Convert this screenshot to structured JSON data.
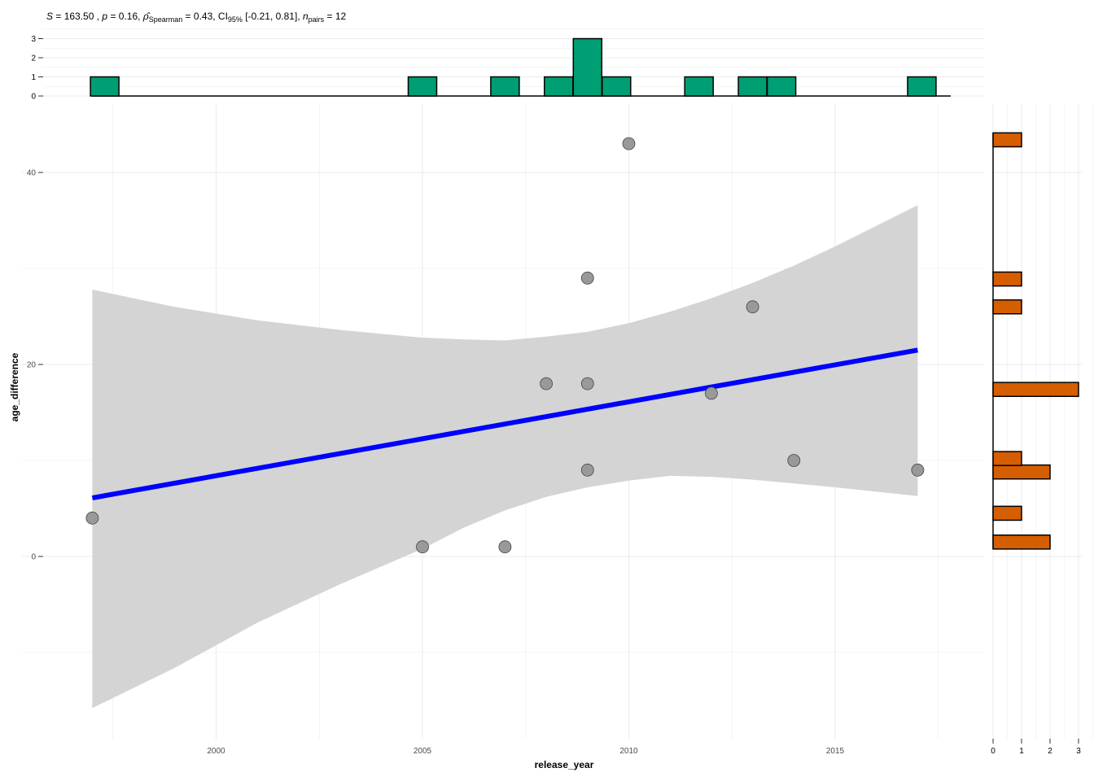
{
  "subtitle": {
    "s_label": "S",
    "s_value": " = 163.50",
    "p_label": "p",
    "p_value": " = 0.16, ",
    "rho_symbol": "ρ̂",
    "rho_sub": "Spearman",
    "rho_value": " = 0.43, CI",
    "ci_sub": "95%",
    "ci_value": " [-0.21, 0.81], ",
    "n_label": "n",
    "n_sub": "pairs",
    "n_value": " = 12"
  },
  "colors": {
    "points": "#999999",
    "trend_line": "#0000ff",
    "confidence_band": "#d4d4d4",
    "x_histogram": "#009E73",
    "y_histogram": "#D55E00",
    "grid": "#ebebeb"
  },
  "chart_data": [
    {
      "type": "scatter",
      "xlabel": "release_year",
      "ylabel": "age_difference",
      "xlim": [
        1996.3,
        2018.5
      ],
      "ylim": [
        -19,
        46.5
      ],
      "x_ticks": [
        "2000",
        "2005",
        "2010",
        "2015"
      ],
      "y_ticks": [
        "0",
        "20",
        "40"
      ],
      "grid": true,
      "points": [
        {
          "x": 1997,
          "y": 4
        },
        {
          "x": 2005,
          "y": 1
        },
        {
          "x": 2007,
          "y": 1
        },
        {
          "x": 2008,
          "y": 18
        },
        {
          "x": 2009,
          "y": 29
        },
        {
          "x": 2009,
          "y": 18
        },
        {
          "x": 2009,
          "y": 9
        },
        {
          "x": 2010,
          "y": 43
        },
        {
          "x": 2012,
          "y": 17
        },
        {
          "x": 2013,
          "y": 26
        },
        {
          "x": 2014,
          "y": 10
        },
        {
          "x": 2017,
          "y": 9
        }
      ],
      "trend_line": {
        "x": [
          1997,
          2017
        ],
        "y": [
          6.1,
          21.5
        ]
      },
      "confidence_band": {
        "x": [
          1997,
          1999,
          2001,
          2003,
          2005,
          2006,
          2007,
          2008,
          2009,
          2010,
          2011,
          2012,
          2013,
          2014,
          2015,
          2017
        ],
        "upper": [
          27.8,
          26.0,
          24.6,
          23.6,
          22.8,
          22.6,
          22.5,
          22.9,
          23.4,
          24.3,
          25.5,
          26.9,
          28.5,
          30.3,
          32.3,
          36.6
        ],
        "lower": [
          -15.8,
          -11.6,
          -6.9,
          -2.9,
          0.8,
          3.0,
          4.8,
          6.2,
          7.2,
          7.9,
          8.4,
          8.3,
          8.0,
          7.6,
          7.2,
          6.3
        ]
      }
    },
    {
      "type": "bar",
      "orientation": "vertical",
      "bins": [
        {
          "x": 1997.3,
          "count": 1
        },
        {
          "x": 2005.0,
          "count": 1
        },
        {
          "x": 2007.0,
          "count": 1
        },
        {
          "x": 2008.3,
          "count": 1
        },
        {
          "x": 2009.0,
          "count": 3
        },
        {
          "x": 2009.7,
          "count": 1
        },
        {
          "x": 2011.7,
          "count": 1
        },
        {
          "x": 2013.0,
          "count": 1
        },
        {
          "x": 2013.7,
          "count": 1
        },
        {
          "x": 2017.1,
          "count": 1
        }
      ],
      "bin_width": 0.69,
      "x_range": [
        1997.0,
        2017.8
      ],
      "ylim": [
        0,
        3
      ],
      "y_ticks": [
        "0",
        "1",
        "2",
        "3"
      ]
    },
    {
      "type": "bar",
      "orientation": "horizontal",
      "bins": [
        {
          "y": 1.5,
          "count": 2
        },
        {
          "y": 4.5,
          "count": 1
        },
        {
          "y": 8.8,
          "count": 2
        },
        {
          "y": 10.2,
          "count": 1
        },
        {
          "y": 17.4,
          "count": 3
        },
        {
          "y": 26.0,
          "count": 1
        },
        {
          "y": 28.9,
          "count": 1
        },
        {
          "y": 43.4,
          "count": 1
        }
      ],
      "bin_width": 1.45,
      "y_range": [
        0.8,
        44.1
      ],
      "xlim": [
        0,
        3
      ],
      "x_ticks": [
        "0",
        "1",
        "2",
        "3"
      ]
    }
  ]
}
